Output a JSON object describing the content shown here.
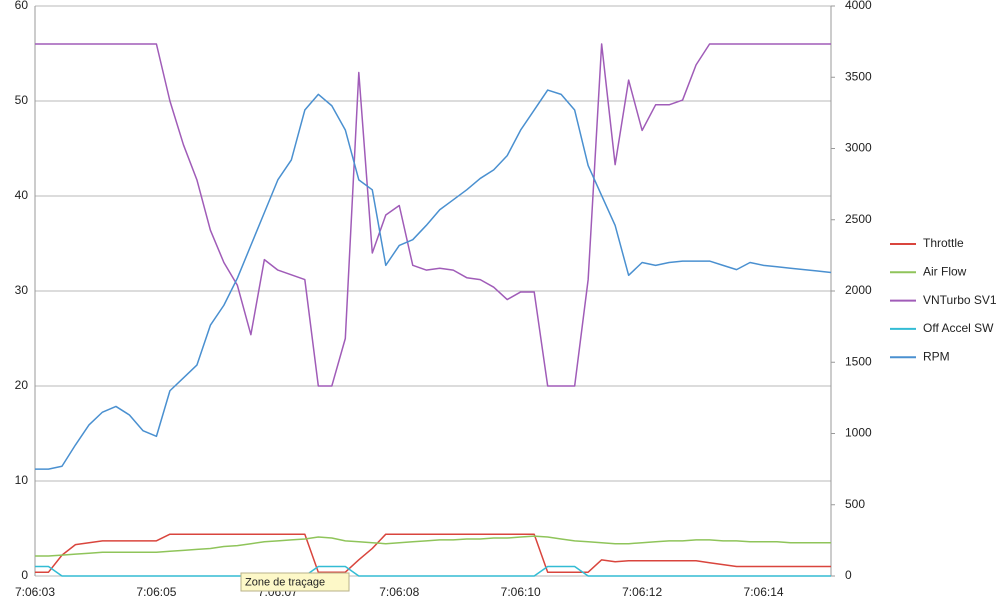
{
  "chart_data": {
    "type": "line",
    "categories": [
      "7:06:03",
      null,
      null,
      null,
      null,
      null,
      null,
      null,
      null,
      "7:06:05",
      null,
      null,
      null,
      null,
      null,
      null,
      null,
      null,
      "7:06:07",
      null,
      null,
      null,
      null,
      null,
      null,
      null,
      null,
      "7:06:08",
      null,
      null,
      null,
      null,
      null,
      null,
      null,
      null,
      "7:06:10",
      null,
      null,
      null,
      null,
      null,
      null,
      null,
      null,
      "7:06:12",
      null,
      null,
      null,
      null,
      null,
      null,
      null,
      null,
      "7:06:14",
      null,
      null,
      null,
      null,
      null
    ],
    "ylim": [
      0,
      60
    ],
    "yticks": [
      0,
      10,
      20,
      30,
      40,
      50,
      60
    ],
    "y2lim": [
      0,
      4000
    ],
    "y2ticks": [
      0,
      500,
      1000,
      1500,
      2000,
      2500,
      3000,
      3500,
      4000
    ],
    "grid": true,
    "legend": "right",
    "annotation": "Zone de traçage",
    "series": [
      {
        "name": "Throttle",
        "color": "#d9453d",
        "values": [
          0.4,
          0.4,
          2.2,
          3.3,
          3.5,
          3.7,
          3.7,
          3.7,
          3.7,
          3.7,
          4.4,
          4.4,
          4.4,
          4.4,
          4.4,
          4.4,
          4.4,
          4.4,
          4.4,
          4.4,
          4.4,
          0.4,
          0.4,
          0.4,
          1.7,
          2.9,
          4.4,
          4.4,
          4.4,
          4.4,
          4.4,
          4.4,
          4.4,
          4.4,
          4.4,
          4.4,
          4.4,
          4.4,
          0.4,
          0.4,
          0.4,
          0.4,
          1.7,
          1.5,
          1.6,
          1.6,
          1.6,
          1.6,
          1.6,
          1.6,
          1.4,
          1.2,
          1.0,
          1.0,
          1.0,
          1.0,
          1.0,
          1.0,
          1.0,
          1.0
        ]
      },
      {
        "name": "Air Flow",
        "color": "#8fc45a",
        "values": [
          2.1,
          2.1,
          2.2,
          2.3,
          2.4,
          2.5,
          2.5,
          2.5,
          2.5,
          2.5,
          2.6,
          2.7,
          2.8,
          2.9,
          3.1,
          3.2,
          3.4,
          3.6,
          3.7,
          3.8,
          3.9,
          4.1,
          4.0,
          3.7,
          3.6,
          3.5,
          3.4,
          3.5,
          3.6,
          3.7,
          3.8,
          3.8,
          3.9,
          3.9,
          4.0,
          4.0,
          4.1,
          4.2,
          4.1,
          3.9,
          3.7,
          3.6,
          3.5,
          3.4,
          3.4,
          3.5,
          3.6,
          3.7,
          3.7,
          3.8,
          3.8,
          3.7,
          3.7,
          3.6,
          3.6,
          3.6,
          3.5,
          3.5,
          3.5,
          3.5
        ]
      },
      {
        "name": "VNTurbo SV1",
        "color": "#a05cb8",
        "values": [
          56,
          56,
          56,
          56,
          56,
          56,
          56,
          56,
          56,
          56,
          50,
          45.4,
          41.7,
          36.4,
          33,
          30.6,
          25.4,
          33.3,
          32.2,
          31.7,
          31.2,
          20,
          20,
          25,
          53,
          34,
          38,
          39,
          32.7,
          32.2,
          32.4,
          32.2,
          31.4,
          31.2,
          30.4,
          29.1,
          29.9,
          29.9,
          20,
          20,
          20,
          31.2,
          56,
          43.3,
          52.2,
          46.9,
          49.6,
          49.6,
          50.1,
          53.8,
          56,
          56,
          56,
          56,
          56,
          56,
          56,
          56,
          56,
          56
        ]
      },
      {
        "name": "Off Accel SW",
        "color": "#33bcd4",
        "values": [
          1,
          1,
          0,
          0,
          0,
          0,
          0,
          0,
          0,
          0,
          0,
          0,
          0,
          0,
          0,
          0,
          0,
          0,
          0,
          0,
          0,
          1,
          1,
          1,
          0,
          0,
          0,
          0,
          0,
          0,
          0,
          0,
          0,
          0,
          0,
          0,
          0,
          0,
          1,
          1,
          1,
          0,
          0,
          0,
          0,
          0,
          0,
          0,
          0,
          0,
          0,
          0,
          0,
          0,
          0,
          0,
          0,
          0,
          0,
          0
        ]
      },
      {
        "name": "RPM",
        "color": "#4a90d0",
        "axis": "y2",
        "values": [
          750,
          750,
          770,
          920,
          1060,
          1150,
          1190,
          1130,
          1020,
          980,
          1300,
          1390,
          1480,
          1760,
          1900,
          2090,
          2320,
          2550,
          2780,
          2920,
          3270,
          3380,
          3300,
          3130,
          2780,
          2710,
          2180,
          2320,
          2360,
          2460,
          2570,
          2640,
          2710,
          2790,
          2850,
          2950,
          3130,
          3270,
          3410,
          3380,
          3270,
          2880,
          2670,
          2460,
          2110,
          2200,
          2180,
          2200,
          2210,
          2210,
          2210,
          2180,
          2150,
          2200,
          2180,
          2170,
          2160,
          2150,
          2140,
          2130
        ]
      }
    ]
  }
}
